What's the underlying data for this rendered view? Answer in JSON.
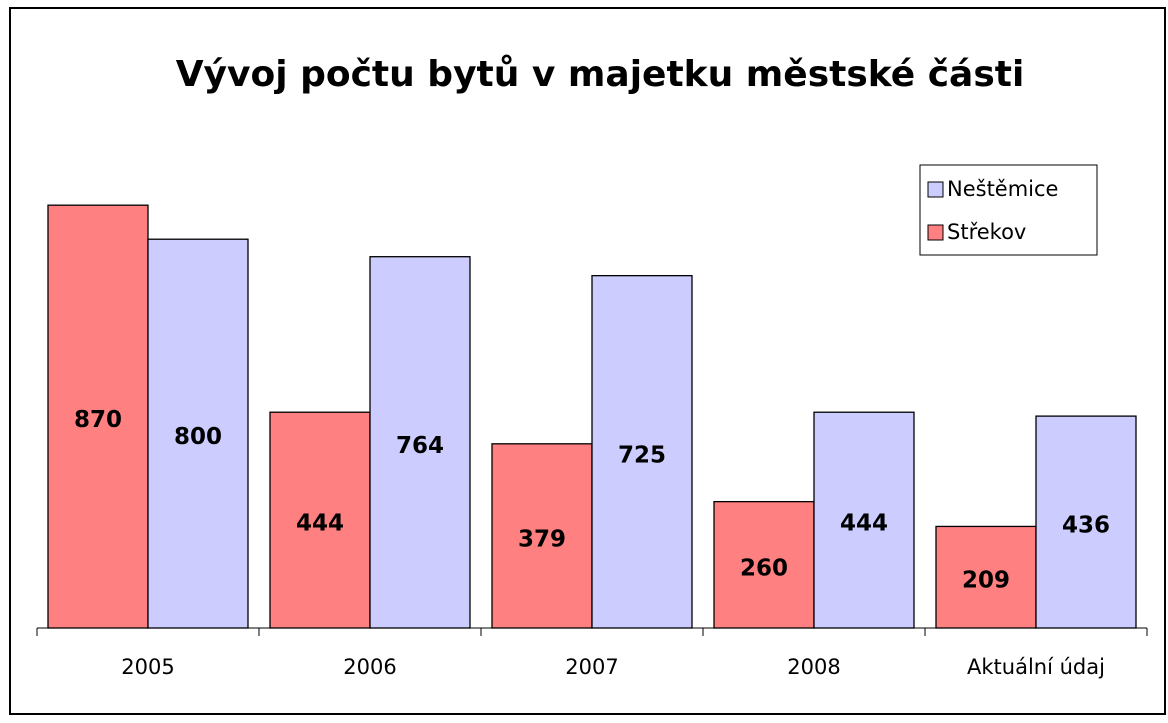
{
  "chart_data": {
    "type": "bar",
    "title": "Vývoj počtu bytů v majetku městské části",
    "categories": [
      "2005",
      "2006",
      "2007",
      "2008",
      "Aktuální údaj"
    ],
    "series": [
      {
        "name": "Střekov",
        "color": "#ff8080",
        "values": [
          870,
          444,
          379,
          260,
          209
        ]
      },
      {
        "name": "Neštěmice",
        "color": "#ccccff",
        "values": [
          800,
          764,
          725,
          444,
          436
        ]
      }
    ],
    "ylim": [
      0,
      1000
    ],
    "legend": "right"
  }
}
